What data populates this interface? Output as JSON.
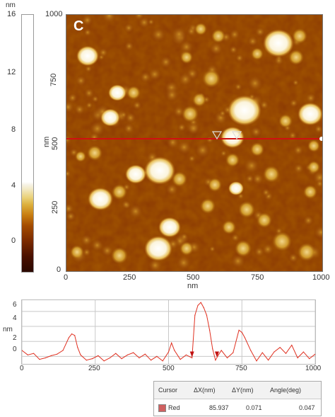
{
  "panel_label": "C",
  "colorbar": {
    "unit": "nm",
    "ticks": [
      "16",
      "12",
      "8",
      "4",
      "0"
    ]
  },
  "afm_image": {
    "y_ticks": [
      "1000",
      "750",
      "500",
      "250",
      "0"
    ],
    "x_ticks": [
      "0",
      "250",
      "500",
      "750",
      "1000"
    ],
    "x_unit": "nm",
    "y_unit": "nm"
  },
  "profile": {
    "y_ticks": [
      "6",
      "4",
      "2",
      "0"
    ],
    "x_ticks": [
      "0",
      "250",
      "500",
      "750",
      "1000"
    ],
    "y_unit": "nm",
    "line_color": "#e03020"
  },
  "cursor_table": {
    "headers": [
      "Cursor",
      "ΔX(nm)",
      "ΔY(nm)",
      "Angle(deg)"
    ],
    "row": {
      "name": "Red",
      "dx": "85.937",
      "dy": "0.071",
      "angle": "0.047",
      "swatch_color": "#d06060"
    }
  },
  "chart_data": {
    "type": "line",
    "x": [
      0,
      20,
      40,
      60,
      80,
      100,
      120,
      140,
      160,
      170,
      180,
      190,
      200,
      220,
      240,
      260,
      280,
      300,
      320,
      340,
      360,
      380,
      400,
      420,
      440,
      460,
      480,
      500,
      510,
      520,
      540,
      560,
      580,
      590,
      600,
      610,
      620,
      630,
      640,
      650,
      660,
      670,
      680,
      700,
      720,
      740,
      750,
      760,
      780,
      800,
      820,
      840,
      860,
      880,
      900,
      920,
      940,
      960,
      980,
      1000
    ],
    "y": [
      0.8,
      0.2,
      0.4,
      -0.4,
      -0.2,
      0.1,
      0.3,
      0.8,
      2.5,
      3.0,
      2.8,
      1.2,
      0.2,
      -0.5,
      -0.3,
      0.1,
      -0.6,
      -0.2,
      0.4,
      -0.3,
      0.2,
      0.5,
      -0.2,
      0.3,
      -0.5,
      0.0,
      -0.6,
      0.6,
      1.8,
      0.8,
      -0.4,
      0.2,
      -0.2,
      5.5,
      6.8,
      7.2,
      6.5,
      5.5,
      3.5,
      1.0,
      -0.5,
      0.2,
      0.8,
      -0.2,
      0.5,
      3.5,
      3.2,
      2.5,
      0.8,
      -0.6,
      0.5,
      -0.5,
      0.6,
      1.2,
      0.4,
      1.5,
      -0.2,
      0.6,
      -0.3,
      0.3
    ],
    "xlim": [
      0,
      1000
    ],
    "ylim": [
      -1,
      7.5
    ],
    "grid": true,
    "markers": [
      {
        "x": 580,
        "y": -0.1
      },
      {
        "x": 665,
        "y": -0.1
      }
    ]
  }
}
